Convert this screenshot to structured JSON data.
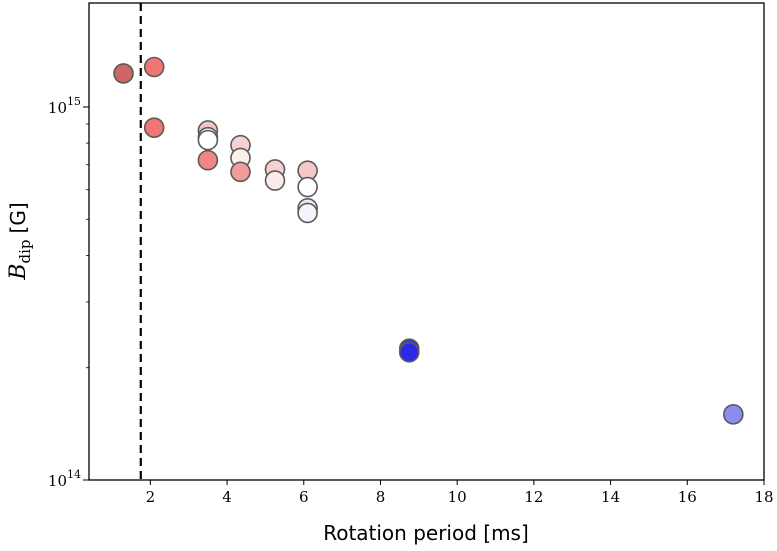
{
  "chart_data": {
    "type": "scatter",
    "title": "",
    "xlabel": "Rotation period [ms]",
    "ylabel": {
      "main": "B",
      "sub": "dip",
      "unit": "[G]"
    },
    "xlim": [
      0.4,
      18
    ],
    "ylim": [
      100000000000000.0,
      1900000000000000.0
    ],
    "yscale": "log",
    "grid": false,
    "x_ticks": [
      2,
      4,
      6,
      8,
      10,
      12,
      14,
      16,
      18
    ],
    "x_tick_labels": [
      "2",
      "4",
      "6",
      "8",
      "10",
      "12",
      "14",
      "16",
      "18"
    ],
    "y_ticks": [
      {
        "value": 100000000000000.0,
        "base": "10",
        "exp": "14"
      },
      {
        "value": 1000000000000000.0,
        "base": "10",
        "exp": "15"
      }
    ],
    "reference_line": {
      "x": 1.75,
      "style": "dashed",
      "color": "#000000"
    },
    "points": [
      {
        "x": 1.3,
        "y": 1230000000000000.0,
        "color": "#d06565"
      },
      {
        "x": 2.1,
        "y": 1280000000000000.0,
        "color": "#f07575"
      },
      {
        "x": 2.1,
        "y": 880000000000000.0,
        "color": "#f07575"
      },
      {
        "x": 3.5,
        "y": 865000000000000.0,
        "color": "#f4c4c4"
      },
      {
        "x": 3.5,
        "y": 830000000000000.0,
        "color": "#fae6e6"
      },
      {
        "x": 3.5,
        "y": 815000000000000.0,
        "color": "#ffffff"
      },
      {
        "x": 3.5,
        "y": 720000000000000.0,
        "color": "#f28686"
      },
      {
        "x": 4.35,
        "y": 790000000000000.0,
        "color": "#f8d2d2"
      },
      {
        "x": 4.35,
        "y": 730000000000000.0,
        "color": "#fcefef"
      },
      {
        "x": 4.35,
        "y": 670000000000000.0,
        "color": "#f49b9b"
      },
      {
        "x": 5.25,
        "y": 680000000000000.0,
        "color": "#f8cfcf"
      },
      {
        "x": 5.25,
        "y": 635000000000000.0,
        "color": "#fbeaea"
      },
      {
        "x": 6.1,
        "y": 675000000000000.0,
        "color": "#f7c8c8"
      },
      {
        "x": 6.1,
        "y": 610000000000000.0,
        "color": "#ffffff"
      },
      {
        "x": 6.1,
        "y": 535000000000000.0,
        "color": "#ececf8"
      },
      {
        "x": 6.1,
        "y": 520000000000000.0,
        "color": "#f4f4fc"
      },
      {
        "x": 8.75,
        "y": 225000000000000.0,
        "color": "#3f3fbf"
      },
      {
        "x": 8.75,
        "y": 220000000000000.0,
        "color": "#2a2ae6"
      },
      {
        "x": 17.2,
        "y": 150000000000000.0,
        "color": "#8c8cf0"
      }
    ]
  }
}
